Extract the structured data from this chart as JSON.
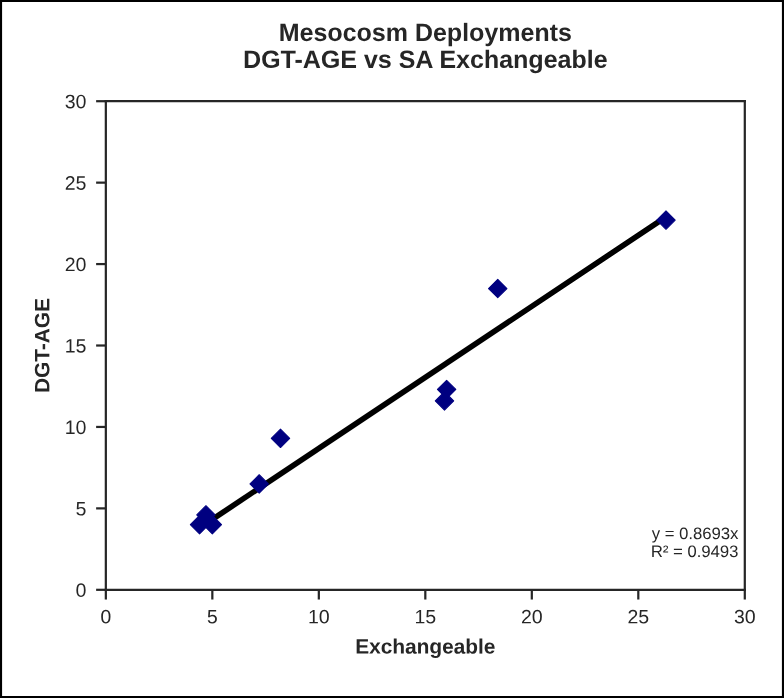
{
  "chart_data": {
    "type": "scatter",
    "title": "Mesocosm Deployments\nDGT-AGE vs SA Exchangeable",
    "xlabel": "Exchangeable",
    "ylabel": "DGT-AGE",
    "series": [
      {
        "color": "#000080",
        "marker": "diamond",
        "x": [
          4.4,
          4.7,
          5.0,
          7.2,
          8.2,
          15.9,
          16.0,
          18.4,
          26.3
        ],
        "values": [
          4.0,
          4.6,
          4.0,
          6.5,
          9.3,
          11.6,
          12.3,
          18.5,
          22.7
        ]
      },
      {
        "type": "line",
        "marker": "none",
        "color": "#000000",
        "x": [
          4.4,
          26.3
        ],
        "values": [
          3.8,
          22.9
        ]
      }
    ],
    "annotations": [
      "y = 0.8693x\nR² = 0.9493"
    ],
    "xlim": [
      0,
      30
    ],
    "ylim": [
      0,
      30
    ],
    "xticks": [
      0,
      5,
      10,
      15,
      20,
      25,
      30
    ],
    "yticks": [
      0,
      5,
      10,
      15,
      20,
      25,
      30
    ],
    "grid": false,
    "legend": false
  }
}
